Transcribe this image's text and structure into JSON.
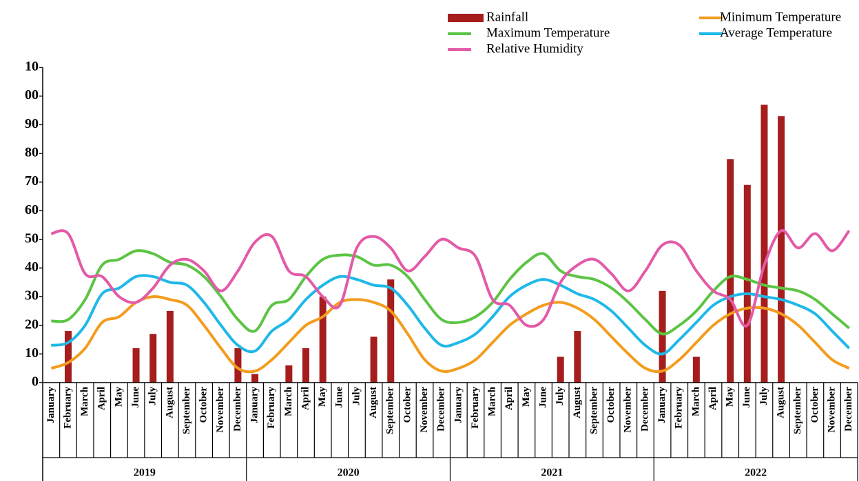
{
  "chart_data": {
    "type": "combo",
    "categories": [
      "January",
      "February",
      "March",
      "April",
      "May",
      "June",
      "July",
      "August",
      "September",
      "October",
      "November",
      "December",
      "January",
      "February",
      "March",
      "April",
      "May",
      "June",
      "July",
      "August",
      "September",
      "October",
      "November",
      "December",
      "January",
      "February",
      "March",
      "April",
      "May",
      "June",
      "July",
      "August",
      "September",
      "October",
      "November",
      "December",
      "January",
      "February",
      "March",
      "April",
      "May",
      "June",
      "July",
      "August",
      "September",
      "October",
      "November",
      "December"
    ],
    "years": [
      "2019",
      "2020",
      "2021",
      "2022"
    ],
    "ylim": [
      0,
      110
    ],
    "yticks": [
      0,
      10,
      20,
      30,
      40,
      50,
      60,
      70,
      80,
      90,
      {
        "value": 100,
        "label": "00"
      },
      {
        "value": 110,
        "label": "10"
      }
    ],
    "series": [
      {
        "name": "Rainfall",
        "kind": "bar",
        "color": "#a51d1d",
        "values": [
          0,
          18,
          0,
          0,
          0,
          12,
          17,
          25,
          0,
          0,
          0,
          12,
          3,
          0,
          6,
          12,
          30,
          0,
          0,
          16,
          36,
          0,
          0,
          0,
          0,
          0,
          0,
          0,
          0,
          0,
          9,
          18,
          0,
          0,
          0,
          0,
          32,
          0,
          9,
          0,
          78,
          69,
          97,
          93,
          0,
          0,
          0,
          0
        ]
      },
      {
        "name": "Minimum Temperature",
        "kind": "line",
        "color": "#f39c1e",
        "values": [
          5,
          7,
          12,
          21,
          23,
          28,
          30,
          29,
          27,
          20,
          12,
          5,
          4,
          8,
          14,
          20,
          23,
          28,
          29,
          28,
          25,
          17,
          8,
          4,
          5,
          8,
          14,
          20,
          24,
          27,
          28,
          26,
          22,
          16,
          10,
          5,
          4,
          8,
          14,
          20,
          24,
          26,
          26,
          24,
          20,
          14,
          8,
          5
        ]
      },
      {
        "name": "Maximum Temperature",
        "kind": "line",
        "color": "#5cc444",
        "values": [
          21.5,
          22,
          29,
          41,
          43,
          46,
          45,
          42,
          41,
          37,
          30,
          22,
          18,
          27,
          29,
          37,
          43,
          44.5,
          44,
          41,
          41,
          37,
          29,
          22,
          21,
          23,
          28,
          36,
          42,
          45,
          39,
          37,
          36,
          33,
          28,
          22,
          17,
          20,
          25,
          32,
          37,
          36,
          34,
          33,
          32,
          29,
          24,
          19
        ]
      },
      {
        "name": "Average Temperature",
        "kind": "line",
        "color": "#1fb8e8",
        "values": [
          13,
          14,
          20,
          31,
          33,
          37,
          37,
          35,
          34,
          28,
          20,
          13,
          11,
          18,
          22,
          29,
          34,
          37,
          36,
          34,
          33,
          27,
          19,
          13,
          14,
          17,
          23,
          30,
          34,
          36,
          34,
          31,
          29,
          25,
          19,
          13,
          10,
          15,
          21,
          27,
          30,
          31,
          30,
          29,
          27,
          24,
          18,
          12
        ]
      },
      {
        "name": "Relative Humidity",
        "kind": "line",
        "color": "#e35aa8",
        "values": [
          52,
          52,
          38,
          37,
          30,
          28,
          33,
          41,
          43,
          39,
          32,
          39,
          49,
          51,
          39,
          37,
          30,
          27,
          47,
          51,
          47,
          39,
          44,
          50,
          47,
          44,
          29,
          27,
          20,
          22,
          35,
          41,
          43,
          38,
          32,
          39,
          48,
          48,
          39,
          32,
          29,
          20,
          41,
          53,
          47,
          52,
          46,
          53
        ]
      }
    ]
  }
}
